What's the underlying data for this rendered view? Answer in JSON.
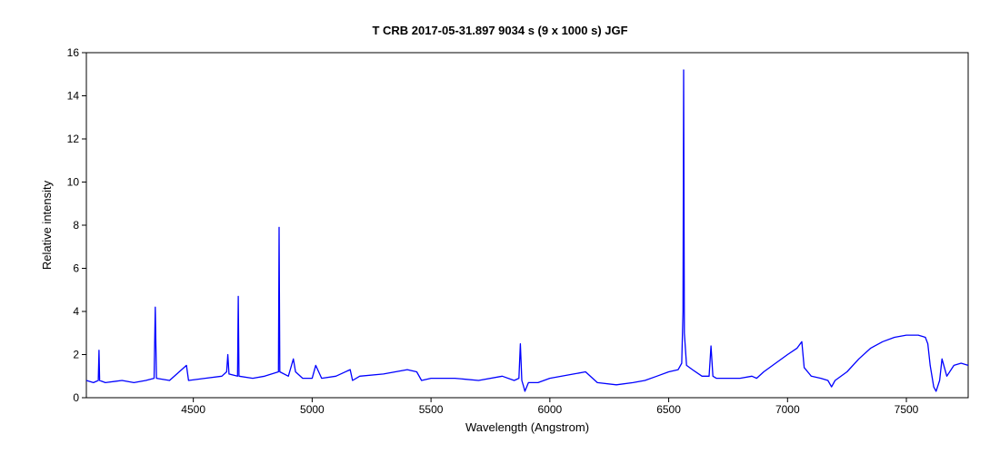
{
  "chart_data": {
    "type": "line",
    "title": "T CRB   2017-05-31.897   9034 s (9 x 1000 s)   JGF",
    "xlabel": "Wavelength (Angstrom)",
    "ylabel": "Relative intensity",
    "xlim": [
      4050,
      7760
    ],
    "ylim": [
      0,
      16
    ],
    "x_ticks": [
      4500,
      5000,
      5500,
      6000,
      6500,
      7000,
      7500
    ],
    "y_ticks": [
      0,
      2,
      4,
      6,
      8,
      10,
      12,
      14,
      16
    ],
    "grid": false,
    "series": [
      {
        "color": "#0000ff",
        "x": [
          4050,
          4080,
          4100,
          4103,
          4106,
          4130,
          4200,
          4250,
          4300,
          4335,
          4340,
          4345,
          4400,
          4471,
          4480,
          4550,
          4620,
          4640,
          4645,
          4650,
          4686,
          4689,
          4692,
          4750,
          4800,
          4858,
          4861,
          4864,
          4900,
          4921,
          4930,
          4960,
          5000,
          5015,
          5040,
          5100,
          5160,
          5170,
          5200,
          5300,
          5400,
          5440,
          5460,
          5500,
          5600,
          5700,
          5800,
          5850,
          5870,
          5876,
          5882,
          5890,
          5895,
          5910,
          5950,
          6000,
          6100,
          6150,
          6200,
          6280,
          6350,
          6400,
          6450,
          6500,
          6540,
          6555,
          6560,
          6563,
          6566,
          6575,
          6600,
          6640,
          6670,
          6678,
          6686,
          6700,
          6750,
          6800,
          6850,
          6870,
          6900,
          6950,
          7000,
          7040,
          7060,
          7070,
          7100,
          7140,
          7170,
          7185,
          7200,
          7250,
          7300,
          7350,
          7400,
          7450,
          7500,
          7550,
          7580,
          7590,
          7600,
          7615,
          7625,
          7640,
          7650,
          7670,
          7700,
          7730,
          7760
        ],
        "y": [
          0.8,
          0.7,
          0.8,
          2.2,
          0.8,
          0.7,
          0.8,
          0.7,
          0.8,
          0.9,
          4.2,
          0.9,
          0.8,
          1.5,
          0.8,
          0.9,
          1.0,
          1.2,
          2.0,
          1.1,
          1.0,
          4.7,
          1.0,
          0.9,
          1.0,
          1.2,
          7.9,
          1.2,
          1.0,
          1.8,
          1.2,
          0.9,
          0.9,
          1.5,
          0.9,
          1.0,
          1.3,
          0.8,
          1.0,
          1.1,
          1.3,
          1.2,
          0.8,
          0.9,
          0.9,
          0.8,
          1.0,
          0.8,
          0.9,
          2.5,
          0.8,
          0.5,
          0.3,
          0.7,
          0.7,
          0.9,
          1.1,
          1.2,
          0.7,
          0.6,
          0.7,
          0.8,
          1.0,
          1.2,
          1.3,
          1.6,
          4.0,
          15.2,
          3.0,
          1.5,
          1.3,
          1.0,
          1.0,
          2.4,
          1.0,
          0.9,
          0.9,
          0.9,
          1.0,
          0.9,
          1.2,
          1.6,
          2.0,
          2.3,
          2.6,
          1.4,
          1.0,
          0.9,
          0.8,
          0.5,
          0.8,
          1.2,
          1.8,
          2.3,
          2.6,
          2.8,
          2.9,
          2.9,
          2.8,
          2.5,
          1.5,
          0.5,
          0.3,
          0.8,
          1.8,
          1.0,
          1.5,
          1.6,
          1.5
        ]
      }
    ]
  }
}
